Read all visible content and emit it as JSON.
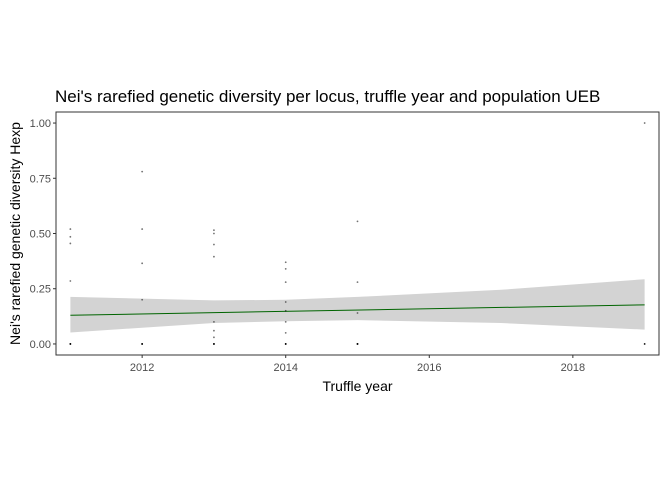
{
  "chart_data": {
    "type": "scatter",
    "title": "Nei's rarefied genetic diversity per locus, truffle year and population UEB",
    "xlabel": "Truffle year",
    "ylabel": "Nei's rarefied genetic diversity Hexp",
    "xlim": [
      2010.8,
      2019.2
    ],
    "ylim": [
      -0.05,
      1.05
    ],
    "x_ticks": [
      2012,
      2014,
      2016,
      2018
    ],
    "x_tick_labels": [
      "2012",
      "2014",
      "2016",
      "2018"
    ],
    "y_ticks": [
      0.0,
      0.25,
      0.5,
      0.75,
      1.0
    ],
    "y_tick_labels": [
      "0.00",
      "0.25",
      "0.50",
      "0.75",
      "1.00"
    ],
    "grid": false,
    "series": [
      {
        "name": "Hexp per locus",
        "kind": "points",
        "color": "#000000",
        "points": [
          {
            "x": 2011,
            "y": 0.0
          },
          {
            "x": 2011,
            "y": 0.0
          },
          {
            "x": 2011,
            "y": 0.285
          },
          {
            "x": 2011,
            "y": 0.455
          },
          {
            "x": 2011,
            "y": 0.485
          },
          {
            "x": 2011,
            "y": 0.52
          },
          {
            "x": 2012,
            "y": 0.0
          },
          {
            "x": 2012,
            "y": 0.0
          },
          {
            "x": 2012,
            "y": 0.2
          },
          {
            "x": 2012,
            "y": 0.365
          },
          {
            "x": 2012,
            "y": 0.52
          },
          {
            "x": 2012,
            "y": 0.78
          },
          {
            "x": 2013,
            "y": 0.0
          },
          {
            "x": 2013,
            "y": 0.0
          },
          {
            "x": 2013,
            "y": 0.03
          },
          {
            "x": 2013,
            "y": 0.06
          },
          {
            "x": 2013,
            "y": 0.1
          },
          {
            "x": 2013,
            "y": 0.395
          },
          {
            "x": 2013,
            "y": 0.45
          },
          {
            "x": 2013,
            "y": 0.5
          },
          {
            "x": 2013,
            "y": 0.515
          },
          {
            "x": 2014,
            "y": 0.0
          },
          {
            "x": 2014,
            "y": 0.0
          },
          {
            "x": 2014,
            "y": 0.05
          },
          {
            "x": 2014,
            "y": 0.1
          },
          {
            "x": 2014,
            "y": 0.15
          },
          {
            "x": 2014,
            "y": 0.19
          },
          {
            "x": 2014,
            "y": 0.28
          },
          {
            "x": 2014,
            "y": 0.34
          },
          {
            "x": 2014,
            "y": 0.37
          },
          {
            "x": 2015,
            "y": 0.0
          },
          {
            "x": 2015,
            "y": 0.0
          },
          {
            "x": 2015,
            "y": 0.14
          },
          {
            "x": 2015,
            "y": 0.28
          },
          {
            "x": 2015,
            "y": 0.555
          },
          {
            "x": 2019,
            "y": 0.0
          },
          {
            "x": 2019,
            "y": 1.0
          }
        ]
      },
      {
        "name": "Linear fit",
        "kind": "line",
        "color": "#006400",
        "x": [
          2011,
          2019
        ],
        "y": [
          0.13,
          0.177
        ]
      },
      {
        "name": "95% confidence band",
        "kind": "band",
        "color": "#d3d3d3",
        "x": [
          2011,
          2013,
          2014,
          2015,
          2017,
          2019
        ],
        "lower": [
          0.052,
          0.095,
          0.103,
          0.108,
          0.095,
          0.065
        ],
        "upper": [
          0.213,
          0.197,
          0.2,
          0.213,
          0.245,
          0.293
        ]
      }
    ]
  }
}
